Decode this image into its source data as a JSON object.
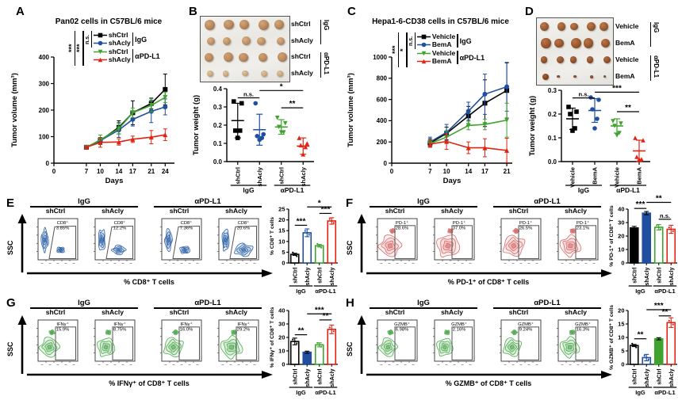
{
  "colors": {
    "black": "#000000",
    "blue": "#1f4f9e",
    "green": "#3fa32e",
    "red": "#e02313",
    "flow_blue": "#2b5fa5",
    "flow_red": "#d96a6a",
    "flow_green": "#4faa4f"
  },
  "panels": {
    "A": {
      "letter": "A",
      "title": "Pan02 cells in C57BL/6 mice",
      "sig_labels": [
        "***",
        "***",
        "n.s."
      ],
      "legend": {
        "rows": [
          {
            "label": "shCtrl",
            "color": "black",
            "marker": "square"
          },
          {
            "label": "shAcly",
            "color": "blue",
            "marker": "circle"
          },
          {
            "label": "shCtrl",
            "color": "green",
            "marker": "tri-down"
          },
          {
            "label": "shAcly",
            "color": "red",
            "marker": "tri-up"
          }
        ],
        "groups": [
          "IgG",
          "αPD-L1"
        ]
      },
      "chart_data": {
        "type": "line",
        "title": "Pan02 cells in C57BL/6 mice",
        "xlabel": "Days",
        "ylabel": "Tumor volume (mm³)",
        "x": [
          7,
          10,
          14,
          17,
          21,
          24
        ],
        "xticks": [
          0,
          7,
          10,
          14,
          17,
          21,
          24
        ],
        "xlim": [
          0,
          26
        ],
        "ylim": [
          0,
          400
        ],
        "yticks": [
          0,
          100,
          200,
          300,
          400
        ],
        "series": [
          {
            "name": "shCtrl (IgG)",
            "color": "black",
            "marker": "square",
            "values": [
              60,
              85,
              135,
              190,
              225,
              278
            ],
            "err": [
              5,
              10,
              25,
              45,
              20,
              58
            ]
          },
          {
            "name": "shAcly (IgG)",
            "color": "blue",
            "marker": "circle",
            "values": [
              60,
              85,
              125,
              165,
              195,
              212
            ],
            "err": [
              5,
              12,
              28,
              25,
              42,
              30
            ]
          },
          {
            "name": "shCtrl (αPD-L1)",
            "color": "green",
            "marker": "tri-down",
            "values": [
              60,
              88,
              130,
              190,
              218,
              248
            ],
            "err": [
              5,
              18,
              20,
              18,
              25,
              20
            ]
          },
          {
            "name": "shAcly (αPD-L1)",
            "color": "red",
            "marker": "tri-up",
            "values": [
              60,
              78,
              80,
              90,
              98,
              107
            ],
            "err": [
              5,
              18,
              12,
              12,
              25,
              22
            ]
          }
        ]
      }
    },
    "B": {
      "letter": "B",
      "photo": {
        "row_labels": [
          "shCtrl",
          "shAcly",
          "shCtrl",
          "shAcly"
        ],
        "group_labels": [
          "IgG",
          "αPD-L1"
        ]
      },
      "chart_data": {
        "type": "scatter",
        "ylabel": "Tumor weight (g)",
        "ylim": [
          0,
          0.4
        ],
        "yticks": [
          0,
          0.1,
          0.2,
          0.3,
          0.4
        ],
        "ydecimals": 1,
        "group_labels": [
          "IgG",
          "αPD-L1"
        ],
        "groups": [
          {
            "label": "shCtrl",
            "color": "black",
            "marker": "square",
            "points": [
              0.33,
              0.32,
              0.17,
              0.17,
              0.13
            ],
            "mean": 0.225,
            "sd": 0.095
          },
          {
            "label": "shAcly",
            "color": "blue",
            "marker": "circle",
            "points": [
              0.32,
              0.15,
              0.14,
              0.13,
              0.12
            ],
            "mean": 0.175,
            "sd": 0.085
          },
          {
            "label": "shCtrl",
            "color": "green",
            "marker": "tri-down",
            "points": [
              0.24,
              0.21,
              0.19,
              0.16,
              0.16
            ],
            "mean": 0.19,
            "sd": 0.04
          },
          {
            "label": "shAcly",
            "color": "red",
            "marker": "tri-up",
            "points": [
              0.13,
              0.1,
              0.09,
              0.08,
              0.04
            ],
            "mean": 0.085,
            "sd": 0.045
          }
        ],
        "sig": [
          {
            "from": 0,
            "to": 1,
            "label": "n.s.",
            "y": 0.35
          },
          {
            "from": 1,
            "to": 3,
            "label": "*",
            "y": 0.39
          },
          {
            "from": 2,
            "to": 3,
            "label": "**",
            "y": 0.295
          }
        ]
      }
    },
    "C": {
      "letter": "C",
      "title": "Hepa1-6-CD38 cells in C57BL/6 mice",
      "sig_labels": [
        "***",
        "*",
        "n.s."
      ],
      "legend": {
        "rows": [
          {
            "label": "Vehicle",
            "color": "black",
            "marker": "square"
          },
          {
            "label": "BemA",
            "color": "blue",
            "marker": "circle"
          },
          {
            "label": "Vehicle",
            "color": "green",
            "marker": "tri-down"
          },
          {
            "label": "BemA",
            "color": "red",
            "marker": "tri-up"
          }
        ],
        "groups": [
          "IgG",
          "αPD-L1"
        ]
      },
      "chart_data": {
        "type": "line",
        "title": "Hepa1-6-CD38 cells in C57BL/6 mice",
        "xlabel": "Days",
        "ylabel": "Tumor volume (mm³)",
        "x": [
          7,
          10,
          14,
          17,
          21
        ],
        "xticks": [
          0,
          7,
          10,
          14,
          17,
          21
        ],
        "xlim": [
          0,
          22
        ],
        "ylim": [
          0,
          1000
        ],
        "yticks": [
          0,
          200,
          400,
          600,
          800,
          1000
        ],
        "series": [
          {
            "name": "Vehicle (IgG)",
            "color": "black",
            "marker": "square",
            "values": [
              190,
              280,
              445,
              565,
              685
            ],
            "err": [
              40,
              60,
              90,
              220,
              260
            ]
          },
          {
            "name": "BemA (IgG)",
            "color": "blue",
            "marker": "circle",
            "values": [
              200,
              290,
              490,
              650,
              720
            ],
            "err": [
              45,
              75,
              85,
              190,
              230
            ]
          },
          {
            "name": "Vehicle (αPD-L1)",
            "color": "green",
            "marker": "tri-down",
            "values": [
              185,
              245,
              355,
              365,
              405
            ],
            "err": [
              35,
              60,
              40,
              50,
              160
            ]
          },
          {
            "name": "BemA (αPD-L1)",
            "color": "red",
            "marker": "tri-up",
            "values": [
              180,
              205,
              145,
              145,
              120
            ],
            "err": [
              30,
              75,
              55,
              85,
              115
            ]
          }
        ]
      }
    },
    "D": {
      "letter": "D",
      "photo": {
        "row_labels": [
          "Vehicle",
          "BemA",
          "Vehicle",
          "BemA"
        ],
        "group_labels": [
          "IgG",
          "αPD-L1"
        ]
      },
      "chart_data": {
        "type": "scatter",
        "ylabel": "Tumor weight (g)",
        "ylim": [
          0,
          0.3
        ],
        "yticks": [
          0,
          0.1,
          0.2,
          0.3
        ],
        "ydecimals": 1,
        "group_labels": [
          "IgG",
          "αPD-L1"
        ],
        "groups": [
          {
            "label": "Vehicle",
            "color": "black",
            "marker": "square",
            "points": [
              0.23,
              0.21,
              0.2,
              0.14,
              0.13
            ],
            "mean": 0.18,
            "sd": 0.045
          },
          {
            "label": "BemA",
            "color": "blue",
            "marker": "circle",
            "points": [
              0.27,
              0.26,
              0.22,
              0.18,
              0.14
            ],
            "mean": 0.215,
            "sd": 0.05
          },
          {
            "label": "Vehicle",
            "color": "green",
            "marker": "tri-down",
            "points": [
              0.17,
              0.16,
              0.15,
              0.12,
              0.11
            ],
            "mean": 0.15,
            "sd": 0.03
          },
          {
            "label": "BemA",
            "color": "red",
            "marker": "tri-up",
            "points": [
              0.1,
              0.09,
              0.02,
              0.01,
              0.01
            ],
            "mean": 0.045,
            "sd": 0.045
          }
        ],
        "sig": [
          {
            "from": 0,
            "to": 1,
            "label": "n.s.",
            "y": 0.268
          },
          {
            "from": 1,
            "to": 3,
            "label": "***",
            "y": 0.292
          },
          {
            "from": 2,
            "to": 3,
            "label": "**",
            "y": 0.21
          }
        ]
      }
    },
    "E": {
      "letter": "E",
      "flow_color": "flow_blue",
      "flow_style": "cd8",
      "group_headers": [
        "IgG",
        "αPD-L1"
      ],
      "col_headers": [
        "shCtrl",
        "shAcly",
        "shCtrl",
        "shAcly"
      ],
      "y_axis_label": "SSC",
      "x_axis_label": "% CD8⁺ T cells",
      "gate_label": "CD8⁺",
      "percents": [
        "3.85%",
        "12.2%",
        "7.36%",
        "20.6%"
      ],
      "chart_data": {
        "type": "bar",
        "ylabel": "% CD8⁺ T cells",
        "ylim": [
          0,
          25
        ],
        "yticks": [
          0,
          5,
          10,
          15,
          20,
          25
        ],
        "categories": [
          "shCtrl",
          "shAcly",
          "shCtrl",
          "shAcly"
        ],
        "group_labels": [
          "IgG",
          "αPD-L1"
        ],
        "values": [
          4,
          14,
          8,
          19.5
        ],
        "err": [
          0.5,
          1.8,
          0.6,
          1.5
        ],
        "colors": [
          "black",
          "blue",
          "green",
          "red"
        ],
        "filled": [
          false,
          false,
          false,
          false
        ],
        "sig": [
          {
            "from": 0,
            "to": 1,
            "label": "***",
            "y": 17.5
          },
          {
            "from": 1,
            "to": 3,
            "label": "*",
            "y": 26
          },
          {
            "from": 2,
            "to": 3,
            "label": "***",
            "y": 23
          }
        ]
      }
    },
    "F": {
      "letter": "F",
      "flow_color": "flow_red",
      "flow_style": "cluster",
      "group_headers": [
        "IgG",
        "αPD-L1"
      ],
      "col_headers": [
        "shCtrl",
        "shAcly",
        "shCtrl",
        "shAcly"
      ],
      "y_axis_label": "SSC",
      "x_axis_label": "% PD-1⁺ of CD8⁺ T cells",
      "gate_label": "PD-1⁺",
      "percents": [
        "28.6%",
        "37.0%",
        "26.5%",
        "23.1%"
      ],
      "chart_data": {
        "type": "bar",
        "ylabel": "% PD-1⁺ of CD8⁺ T cells",
        "ylim": [
          0,
          40
        ],
        "yticks": [
          0,
          10,
          20,
          30,
          40
        ],
        "categories": [
          "shCtrl",
          "shAcly",
          "shCtrl",
          "shAcly"
        ],
        "group_labels": [
          "IgG",
          "αPD-L1"
        ],
        "values": [
          26,
          37,
          26.5,
          25
        ],
        "err": [
          1.2,
          1.2,
          2,
          3
        ],
        "colors": [
          "black",
          "blue",
          "green",
          "red"
        ],
        "filled": [
          true,
          true,
          false,
          false
        ],
        "sig": [
          {
            "from": 0,
            "to": 1,
            "label": "***",
            "y": 40.5
          },
          {
            "from": 1,
            "to": 3,
            "label": "**",
            "y": 45
          },
          {
            "from": 2,
            "to": 3,
            "label": "n.s.",
            "y": 32.5
          }
        ]
      }
    },
    "G": {
      "letter": "G",
      "flow_color": "flow_green",
      "flow_style": "cluster",
      "group_headers": [
        "IgG",
        "αPD-L1"
      ],
      "col_headers": [
        "shCtrl",
        "shAcly",
        "shCtrl",
        "shAcly"
      ],
      "y_axis_label": "SSC",
      "x_axis_label": "% IFNγ⁺ of CD8⁺ T cells",
      "gate_label": "IFNγ⁺",
      "percents": [
        "15.9%",
        "8.75%",
        "16.0%",
        "29.2%"
      ],
      "chart_data": {
        "type": "bar",
        "ylabel": "% IFNγ⁺ of CD8⁺ T cells",
        "ylim": [
          0,
          40
        ],
        "yticks": [
          0,
          10,
          20,
          30,
          40
        ],
        "categories": [
          "shCtrl",
          "shAcly",
          "shCtrl",
          "shAcly"
        ],
        "group_labels": [
          "IgG",
          "αPD-L1"
        ],
        "values": [
          17,
          9,
          14.5,
          26
        ],
        "err": [
          2.5,
          0.8,
          1.5,
          3.2
        ],
        "colors": [
          "black",
          "blue",
          "green",
          "red"
        ],
        "filled": [
          false,
          true,
          false,
          false
        ],
        "sig": [
          {
            "from": 0,
            "to": 1,
            "label": "**",
            "y": 22
          },
          {
            "from": 1,
            "to": 3,
            "label": "***",
            "y": 37.5
          },
          {
            "from": 2,
            "to": 3,
            "label": "**",
            "y": 33
          }
        ]
      }
    },
    "H": {
      "letter": "H",
      "flow_color": "flow_green",
      "flow_style": "cluster",
      "group_headers": [
        "IgG",
        "αPD-L1"
      ],
      "col_headers": [
        "shCtrl",
        "shAcly",
        "shCtrl",
        "shAcly"
      ],
      "y_axis_label": "SSC",
      "x_axis_label": "% GZMB⁺ of CD8⁺ T cells",
      "gate_label": "GZMB⁺",
      "percents": [
        "6.98%",
        "2.16%",
        "9.24%",
        "16.3%"
      ],
      "chart_data": {
        "type": "bar",
        "ylabel": "% GZMB⁺ of CD8⁺ T cells",
        "ylim": [
          0,
          20
        ],
        "yticks": [
          0,
          5,
          10,
          15,
          20
        ],
        "categories": [
          "shCtrl",
          "shAcly",
          "shCtrl",
          "shAcly"
        ],
        "group_labels": [
          "IgG",
          "αPD-L1"
        ],
        "values": [
          7,
          2.5,
          9.5,
          15.5
        ],
        "err": [
          0.4,
          1.2,
          0.4,
          1.8
        ],
        "colors": [
          "black",
          "blue",
          "green",
          "red"
        ],
        "filled": [
          false,
          false,
          true,
          false
        ],
        "sig": [
          {
            "from": 0,
            "to": 1,
            "label": "**",
            "y": 9.5
          },
          {
            "from": 1,
            "to": 3,
            "label": "***",
            "y": 20.3
          },
          {
            "from": 2,
            "to": 3,
            "label": "**",
            "y": 18
          }
        ]
      }
    }
  }
}
